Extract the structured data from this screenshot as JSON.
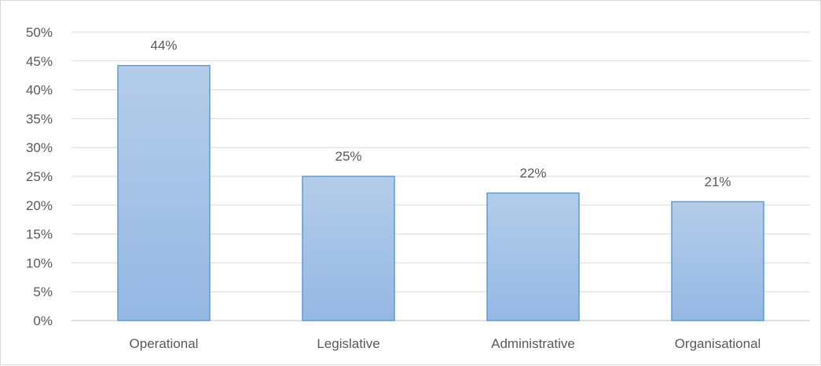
{
  "chart_data": {
    "type": "bar",
    "categories": [
      "Operational",
      "Legislative",
      "Administrative",
      "Organisational"
    ],
    "values": [
      44.2,
      25.0,
      22.1,
      20.6
    ],
    "data_labels": [
      "44%",
      "25%",
      "22%",
      "21%"
    ],
    "title": "",
    "xlabel": "",
    "ylabel": "",
    "ylim": [
      0,
      50
    ],
    "yticks": [
      0,
      5,
      10,
      15,
      20,
      25,
      30,
      35,
      40,
      45,
      50
    ],
    "ytick_labels": [
      "0%",
      "5%",
      "10%",
      "15%",
      "20%",
      "25%",
      "30%",
      "35%",
      "40%",
      "45%",
      "50%"
    ],
    "grid": true,
    "legend": "none",
    "colors": {
      "bar_fill_top": "#b4cde9",
      "bar_fill_bottom": "#95b8e4",
      "bar_border": "#5b9bd5",
      "gridline": "#d9d9d9",
      "axis": "#bfbfbf",
      "text": "#595959"
    }
  }
}
